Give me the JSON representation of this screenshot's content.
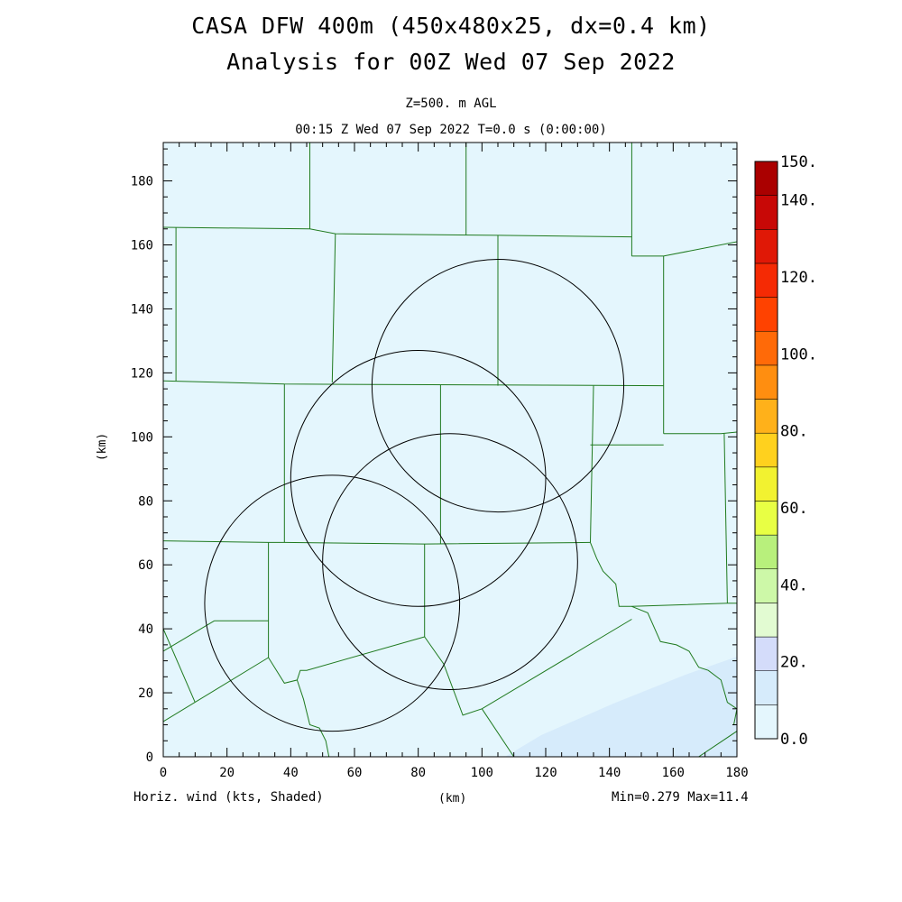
{
  "header": {
    "title_line1": "CASA DFW 400m (450x480x25, dx=0.4 km)",
    "title_line2": "Analysis for 00Z Wed 07 Sep 2022",
    "level": "Z=500. m AGL",
    "valid_time": "00:15 Z Wed 07 Sep 2022   T=0.0 s (0:00:00)"
  },
  "footer": {
    "field_label": "Horiz. wind (kts, Shaded)",
    "x_unit": "(km)",
    "minmax": "Min=0.279 Max=11.4"
  },
  "axes": {
    "y_unit": "(km)",
    "x_range": [
      0,
      180
    ],
    "y_range": [
      0,
      192
    ],
    "x_ticks": [
      "0",
      "20",
      "40",
      "60",
      "80",
      "100",
      "120",
      "140",
      "160",
      "180"
    ],
    "y_ticks": [
      "0",
      "20",
      "40",
      "60",
      "80",
      "100",
      "120",
      "140",
      "160",
      "180"
    ]
  },
  "colorbar": {
    "labels": [
      "0.0",
      "20.",
      "40.",
      "60.",
      "80.",
      "100.",
      "120.",
      "140.",
      "150."
    ],
    "colors": [
      "#e4f6fd",
      "#d6ebfb",
      "#d4dcfa",
      "#e2fbd2",
      "#cdf8a8",
      "#b8f07c",
      "#e8ff44",
      "#f2f230",
      "#ffd11e",
      "#ffb11a",
      "#ff8e10",
      "#ff6a08",
      "#ff4200",
      "#f52a04",
      "#e01806",
      "#c80806",
      "#aa0000"
    ]
  },
  "colors": {
    "background_field": "#e4f6fd",
    "field_shade": "#d6ebfb",
    "county_lines": "#1f7a1f",
    "radar_rings": "#000000"
  },
  "map": {
    "radar_rings": [
      {
        "cx": 105,
        "cy": 116,
        "r": 39.5
      },
      {
        "cx": 80,
        "cy": 87,
        "r": 40
      },
      {
        "cx": 90,
        "cy": 61,
        "r": 40
      },
      {
        "cx": 53,
        "cy": 48,
        "r": 40
      }
    ],
    "county_lines": [
      [
        [
          0,
          117.5
        ],
        [
          38,
          116.5
        ],
        [
          157,
          116
        ]
      ],
      [
        [
          38,
          116.5
        ],
        [
          38,
          67
        ]
      ],
      [
        [
          0,
          67.5
        ],
        [
          33,
          67
        ],
        [
          38,
          67
        ],
        [
          82,
          66.5
        ],
        [
          134,
          67
        ]
      ],
      [
        [
          87,
          116.3
        ],
        [
          87,
          66.5
        ]
      ],
      [
        [
          135,
          116
        ],
        [
          134,
          67
        ]
      ],
      [
        [
          4,
          165.5
        ],
        [
          4,
          117.5
        ]
      ],
      [
        [
          0,
          165.5
        ],
        [
          46,
          165
        ],
        [
          54,
          163.5
        ],
        [
          105,
          163
        ],
        [
          147,
          162.5
        ]
      ],
      [
        [
          46,
          192
        ],
        [
          46,
          165
        ]
      ],
      [
        [
          54,
          163.5
        ],
        [
          53,
          117
        ]
      ],
      [
        [
          105,
          163
        ],
        [
          105,
          116
        ]
      ],
      [
        [
          95,
          192
        ],
        [
          95,
          163
        ]
      ],
      [
        [
          147,
          192
        ],
        [
          147,
          156.5
        ]
      ],
      [
        [
          147,
          156.5
        ],
        [
          157,
          156.5
        ],
        [
          180,
          161
        ]
      ],
      [
        [
          157,
          156.5
        ],
        [
          157,
          101
        ]
      ],
      [
        [
          157,
          101
        ],
        [
          175,
          101
        ],
        [
          180,
          101.5
        ]
      ],
      [
        [
          176,
          101
        ],
        [
          177,
          48
        ]
      ],
      [
        [
          134,
          97.5
        ],
        [
          157,
          97.5
        ]
      ],
      [
        [
          134,
          67
        ],
        [
          136,
          62
        ],
        [
          138,
          58
        ],
        [
          142,
          54
        ],
        [
          143,
          47
        ],
        [
          147,
          47
        ],
        [
          177,
          48
        ],
        [
          180,
          48
        ]
      ],
      [
        [
          147,
          47
        ],
        [
          152,
          45
        ],
        [
          156,
          36
        ],
        [
          161,
          35
        ],
        [
          165,
          33
        ],
        [
          168,
          28
        ],
        [
          171,
          27
        ],
        [
          175,
          24
        ],
        [
          177,
          17
        ],
        [
          180,
          15
        ],
        [
          179,
          10
        ]
      ],
      [
        [
          33,
          67
        ],
        [
          33,
          31
        ]
      ],
      [
        [
          82,
          66.5
        ],
        [
          82,
          37.5
        ]
      ],
      [
        [
          16,
          42.5
        ],
        [
          33,
          42.5
        ]
      ],
      [
        [
          0,
          33
        ],
        [
          16,
          42.5
        ]
      ],
      [
        [
          0,
          40
        ],
        [
          10,
          17
        ]
      ],
      [
        [
          0,
          11
        ],
        [
          33,
          31
        ],
        [
          38,
          23
        ],
        [
          42,
          24
        ],
        [
          43,
          27
        ],
        [
          45,
          27
        ],
        [
          82,
          37.5
        ]
      ],
      [
        [
          82,
          37.5
        ],
        [
          88,
          29
        ],
        [
          94,
          13
        ],
        [
          100,
          15
        ],
        [
          147,
          43
        ]
      ],
      [
        [
          42,
          24
        ],
        [
          44,
          18
        ],
        [
          46,
          10
        ],
        [
          49,
          9
        ],
        [
          51,
          5
        ],
        [
          52,
          0
        ]
      ],
      [
        [
          100,
          15
        ],
        [
          110,
          0
        ]
      ],
      [
        [
          168,
          0
        ],
        [
          180,
          8
        ]
      ]
    ]
  }
}
